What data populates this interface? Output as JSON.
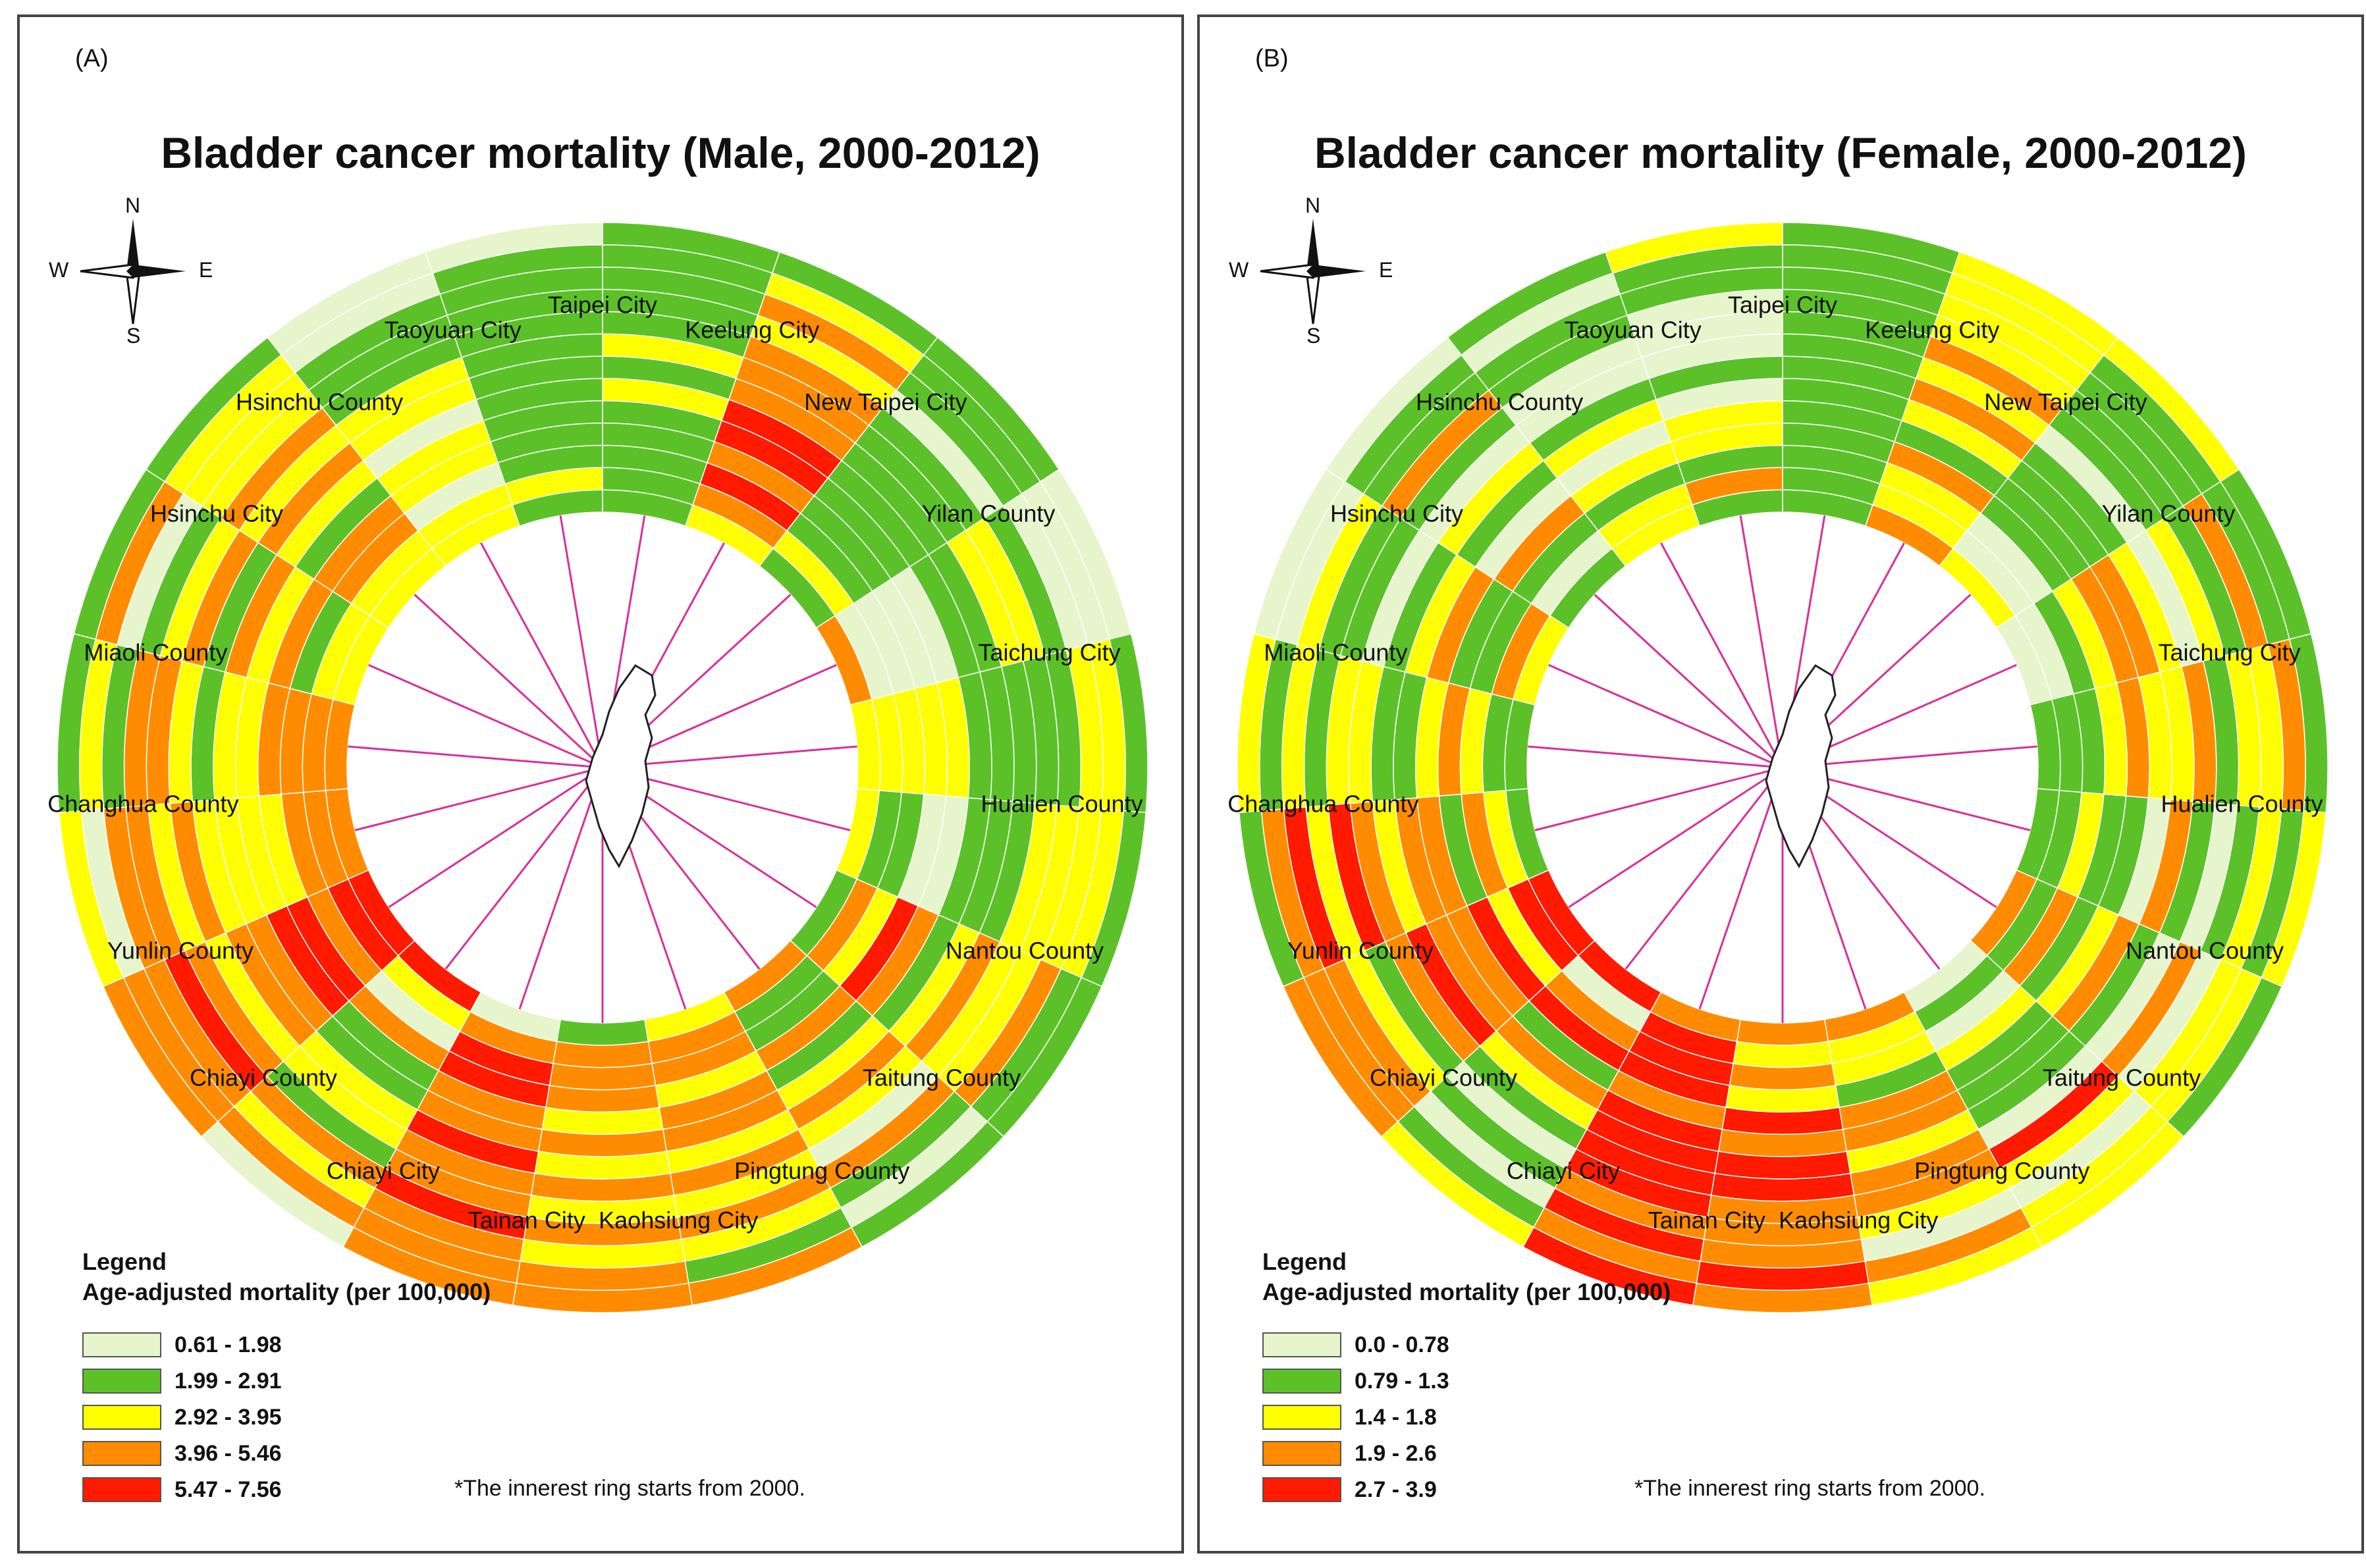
{
  "panels": [
    {
      "id": "male",
      "label": "(A)",
      "title": "Bladder cancer mortality (Male, 2000-2012)",
      "compass": {
        "n": "N",
        "s": "S",
        "e": "E",
        "w": "W"
      },
      "legend": {
        "title": "Legend",
        "subtitle": "Age-adjusted mortality (per 100,000)",
        "items": [
          {
            "label": "0.61 - 1.98",
            "color": "#e6f5cc"
          },
          {
            "label": "1.99 - 2.91",
            "color": "#5cc129"
          },
          {
            "label": "2.92 - 3.95",
            "color": "#ffff00"
          },
          {
            "label": "3.96 - 5.46",
            "color": "#ff8c00"
          },
          {
            "label": "5.47 - 7.56",
            "color": "#ff1a00"
          }
        ]
      },
      "footnote": "*The innerest ring starts from 2000.",
      "sectors": [
        {
          "name": "Taipei City",
          "years": [
            1,
            1,
            1,
            1,
            1,
            2,
            1,
            2,
            1,
            1,
            1,
            1,
            1
          ]
        },
        {
          "name": "Keelung City",
          "years": [
            2,
            3,
            4,
            3,
            4,
            4,
            3,
            3,
            3,
            2,
            3,
            2,
            1
          ]
        },
        {
          "name": "New Taipei City",
          "years": [
            1,
            2,
            1,
            1,
            1,
            1,
            1,
            1,
            1,
            0,
            1,
            1,
            1
          ]
        },
        {
          "name": "Yilan County",
          "years": [
            3,
            0,
            0,
            0,
            0,
            1,
            1,
            2,
            2,
            1,
            0,
            0,
            0
          ]
        },
        {
          "name": "Taichung City",
          "years": [
            2,
            2,
            2,
            2,
            2,
            1,
            1,
            1,
            1,
            1,
            2,
            2,
            1
          ]
        },
        {
          "name": "Hualien County",
          "years": [
            2,
            1,
            1,
            0,
            0,
            1,
            1,
            1,
            2,
            2,
            2,
            2,
            1
          ]
        },
        {
          "name": "Nantou County",
          "years": [
            1,
            3,
            2,
            4,
            3,
            1,
            2,
            3,
            2,
            2,
            3,
            1,
            1
          ]
        },
        {
          "name": "Taitung County",
          "years": [
            3,
            1,
            1,
            3,
            1,
            2,
            3,
            2,
            0,
            3,
            1,
            0,
            1
          ]
        },
        {
          "name": "Pingtung County",
          "years": [
            2,
            3,
            3,
            2,
            3,
            3,
            2,
            3,
            2,
            3,
            2,
            1,
            3
          ]
        },
        {
          "name": "Kaohsiung City",
          "years": [
            1,
            3,
            3,
            3,
            2,
            3,
            2,
            3,
            2,
            3,
            2,
            3,
            3
          ]
        },
        {
          "name": "Tainan City",
          "years": [
            0,
            3,
            4,
            4,
            3,
            3,
            4,
            3,
            3,
            4,
            3,
            3,
            3
          ]
        },
        {
          "name": "Chiayi City",
          "years": [
            4,
            2,
            0,
            3,
            1,
            1,
            2,
            2,
            1,
            3,
            2,
            3,
            0
          ]
        },
        {
          "name": "Chiayi County",
          "years": [
            4,
            4,
            3,
            4,
            4,
            3,
            3,
            2,
            3,
            4,
            3,
            3,
            3
          ]
        },
        {
          "name": "Yunlin County",
          "years": [
            3,
            3,
            3,
            2,
            2,
            2,
            2,
            3,
            2,
            3,
            3,
            0,
            2
          ]
        },
        {
          "name": "Changhua County",
          "years": [
            3,
            3,
            3,
            3,
            2,
            2,
            1,
            2,
            3,
            3,
            1,
            2,
            1
          ]
        },
        {
          "name": "Miaoli County",
          "years": [
            2,
            2,
            1,
            3,
            2,
            3,
            1,
            3,
            2,
            1,
            0,
            3,
            1
          ]
        },
        {
          "name": "Hsinchu City",
          "years": [
            2,
            2,
            3,
            3,
            1,
            2,
            3,
            2,
            3,
            2,
            2,
            2,
            1
          ]
        },
        {
          "name": "Hsinchu County",
          "years": [
            2,
            2,
            0,
            2,
            2,
            0,
            2,
            2,
            1,
            1,
            1,
            0,
            0
          ]
        },
        {
          "name": "Taoyuan City",
          "years": [
            1,
            2,
            1,
            1,
            1,
            1,
            1,
            1,
            1,
            1,
            1,
            1,
            0
          ]
        }
      ]
    },
    {
      "id": "female",
      "label": "(B)",
      "title": "Bladder cancer mortality (Female, 2000-2012)",
      "compass": {
        "n": "N",
        "s": "S",
        "e": "E",
        "w": "W"
      },
      "legend": {
        "title": "Legend",
        "subtitle": "Age-adjusted mortality (per 100,000)",
        "items": [
          {
            "label": "0.0 - 0.78",
            "color": "#e6f5cc"
          },
          {
            "label": "0.79 - 1.3",
            "color": "#5cc129"
          },
          {
            "label": "1.4 - 1.8",
            "color": "#ffff00"
          },
          {
            "label": "1.9 - 2.6",
            "color": "#ff8c00"
          },
          {
            "label": "2.7 - 3.9",
            "color": "#ff1a00"
          }
        ]
      },
      "footnote": "*The innerest ring starts from 2000.",
      "sectors": [
        {
          "name": "Taipei City",
          "years": [
            1,
            1,
            1,
            1,
            1,
            1,
            1,
            1,
            1,
            1,
            1,
            1,
            1
          ]
        },
        {
          "name": "Keelung City",
          "years": [
            3,
            2,
            2,
            3,
            1,
            2,
            3,
            2,
            3,
            2,
            2,
            2,
            2
          ]
        },
        {
          "name": "New Taipei City",
          "years": [
            2,
            0,
            0,
            1,
            1,
            1,
            1,
            0,
            1,
            1,
            1,
            1,
            2
          ]
        },
        {
          "name": "Yilan County",
          "years": [
            0,
            0,
            1,
            2,
            3,
            3,
            2,
            0,
            2,
            1,
            3,
            1,
            1
          ]
        },
        {
          "name": "Taichung City",
          "years": [
            1,
            1,
            1,
            2,
            3,
            2,
            2,
            3,
            1,
            2,
            2,
            3,
            1
          ]
        },
        {
          "name": "Hualien County",
          "years": [
            1,
            1,
            2,
            1,
            1,
            0,
            3,
            1,
            0,
            1,
            2,
            1,
            2
          ]
        },
        {
          "name": "Nantou County",
          "years": [
            3,
            1,
            3,
            1,
            2,
            3,
            1,
            0,
            3,
            0,
            2,
            2,
            1
          ]
        },
        {
          "name": "Taitung County",
          "years": [
            0,
            1,
            0,
            2,
            1,
            1,
            1,
            0,
            4,
            2,
            0,
            2,
            2
          ]
        },
        {
          "name": "Pingtung County",
          "years": [
            3,
            2,
            2,
            1,
            3,
            3,
            2,
            3,
            3,
            2,
            0,
            3,
            2
          ]
        },
        {
          "name": "Kaohsiung City",
          "years": [
            3,
            2,
            3,
            2,
            4,
            3,
            4,
            4,
            3,
            3,
            3,
            4,
            3
          ]
        },
        {
          "name": "Tainan City",
          "years": [
            3,
            4,
            4,
            4,
            3,
            4,
            4,
            4,
            4,
            3,
            4,
            3,
            4
          ]
        },
        {
          "name": "Chiayi City",
          "years": [
            4,
            0,
            3,
            4,
            1,
            3,
            2,
            1,
            0,
            1,
            0,
            1,
            2
          ]
        },
        {
          "name": "Chiayi County",
          "years": [
            4,
            4,
            2,
            4,
            3,
            3,
            4,
            3,
            1,
            2,
            3,
            3,
            3
          ]
        },
        {
          "name": "Yunlin County",
          "years": [
            1,
            2,
            3,
            1,
            3,
            3,
            2,
            3,
            4,
            2,
            4,
            3,
            1
          ]
        },
        {
          "name": "Changhua County",
          "years": [
            1,
            1,
            2,
            3,
            2,
            1,
            1,
            2,
            2,
            1,
            2,
            1,
            2
          ]
        },
        {
          "name": "Miaoli County",
          "years": [
            2,
            3,
            1,
            1,
            3,
            2,
            1,
            0,
            1,
            1,
            2,
            0,
            0
          ]
        },
        {
          "name": "Hsinchu City",
          "years": [
            1,
            0,
            1,
            3,
            0,
            1,
            2,
            0,
            1,
            3,
            1,
            1,
            0
          ]
        },
        {
          "name": "Hsinchu County",
          "years": [
            2,
            2,
            1,
            2,
            0,
            2,
            1,
            0,
            0,
            1,
            1,
            0,
            1
          ]
        },
        {
          "name": "Taoyuan City",
          "years": [
            1,
            3,
            1,
            2,
            2,
            0,
            1,
            0,
            0,
            0,
            1,
            1,
            2
          ]
        }
      ]
    }
  ]
}
